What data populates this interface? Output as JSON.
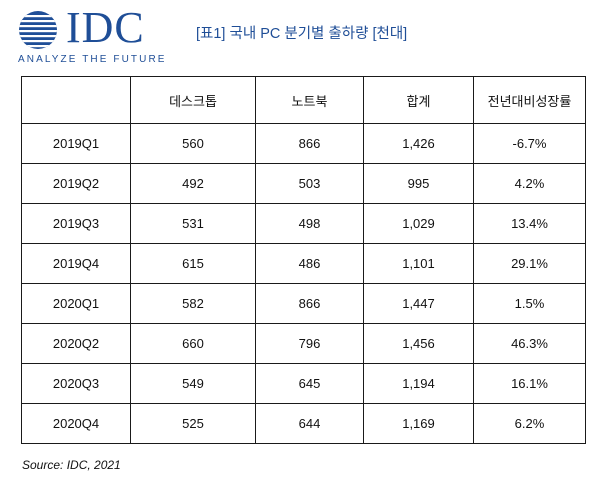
{
  "logo": {
    "brand": "IDC",
    "tagline": "ANALYZE THE FUTURE",
    "color": "#1f4e97"
  },
  "title": "[표1] 국내 PC 분기별 출하량 [천대]",
  "table": {
    "headers": [
      "",
      "데스크톱",
      "노트북",
      "합계",
      "전년대비성장률"
    ],
    "rows": [
      [
        "2019Q1",
        "560",
        "866",
        "1,426",
        "-6.7%"
      ],
      [
        "2019Q2",
        "492",
        "503",
        "995",
        "4.2%"
      ],
      [
        "2019Q3",
        "531",
        "498",
        "1,029",
        "13.4%"
      ],
      [
        "2019Q4",
        "615",
        "486",
        "1,101",
        "29.1%"
      ],
      [
        "2020Q1",
        "582",
        "866",
        "1,447",
        "1.5%"
      ],
      [
        "2020Q2",
        "660",
        "796",
        "1,456",
        "46.3%"
      ],
      [
        "2020Q3",
        "549",
        "645",
        "1,194",
        "16.1%"
      ],
      [
        "2020Q4",
        "525",
        "644",
        "1,169",
        "6.2%"
      ]
    ]
  },
  "source": "Source: IDC, 2021"
}
